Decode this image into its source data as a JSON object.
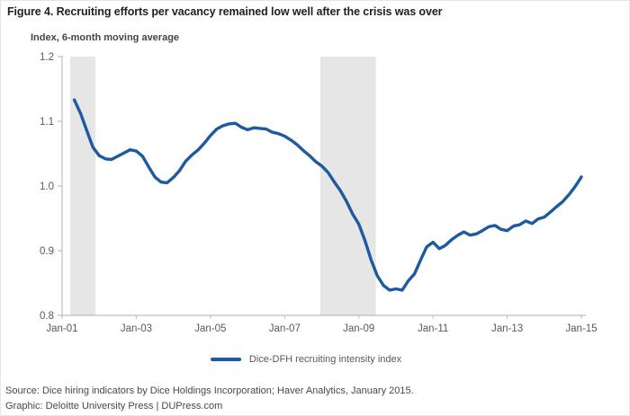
{
  "figure": {
    "title": "Figure 4. Recruiting efforts per vacancy remained low well after the crisis was over",
    "axis_note": "Index, 6-month moving average",
    "legend": {
      "label": "Dice-DFH recruiting intensity index",
      "swatch_color": "#1e5a9d"
    },
    "source_line": "Source: Dice hiring indicators by Dice Holdings Incorporation; Haver Analytics, January 2015.",
    "graphic_line": "Graphic: Deloitte University Press  |  DUPress.com"
  },
  "colors": {
    "line_blue": "#1e5a9d",
    "recession_band_gray": "#e6e6e6",
    "axis_gray": "#bdbdbd",
    "tick_label_gray": "#58595b",
    "background": "#ffffff"
  },
  "chart_data": {
    "type": "line",
    "title": "Figure 4. Recruiting efforts per vacancy remained low well after the crisis was over",
    "xlabel": "",
    "ylabel": "Index, 6-month moving average",
    "xlim": [
      2001,
      2015
    ],
    "ylim": [
      0.8,
      1.2
    ],
    "grid": false,
    "legend_position": "bottom-center",
    "y_ticks": [
      0.8,
      0.9,
      1.0,
      1.1,
      1.2
    ],
    "x_ticks": [
      {
        "label": "Jan-01",
        "year": 2001
      },
      {
        "label": "Jan-03",
        "year": 2003
      },
      {
        "label": "Jan-05",
        "year": 2005
      },
      {
        "label": "Jan-07",
        "year": 2007
      },
      {
        "label": "Jan-09",
        "year": 2009
      },
      {
        "label": "Jan-11",
        "year": 2011
      },
      {
        "label": "Jan-13",
        "year": 2013
      },
      {
        "label": "Jan-15",
        "year": 2015
      }
    ],
    "recession_bands": [
      {
        "x0": 2001.22,
        "x1": 2001.9
      },
      {
        "x0": 2007.96,
        "x1": 2009.46
      }
    ],
    "series": [
      {
        "name": "Dice-DFH recruiting intensity index",
        "color": "#1e5a9d",
        "x": [
          2001.33,
          2001.5,
          2001.67,
          2001.83,
          2002.0,
          2002.17,
          2002.33,
          2002.5,
          2002.67,
          2002.83,
          2003.0,
          2003.17,
          2003.33,
          2003.5,
          2003.67,
          2003.83,
          2004.0,
          2004.17,
          2004.33,
          2004.5,
          2004.67,
          2004.83,
          2005.0,
          2005.17,
          2005.33,
          2005.5,
          2005.67,
          2005.83,
          2006.0,
          2006.17,
          2006.33,
          2006.5,
          2006.67,
          2006.83,
          2007.0,
          2007.17,
          2007.33,
          2007.5,
          2007.67,
          2007.83,
          2008.0,
          2008.17,
          2008.33,
          2008.5,
          2008.67,
          2008.83,
          2009.0,
          2009.17,
          2009.33,
          2009.5,
          2009.67,
          2009.83,
          2010.0,
          2010.17,
          2010.33,
          2010.5,
          2010.67,
          2010.83,
          2011.0,
          2011.17,
          2011.33,
          2011.5,
          2011.67,
          2011.83,
          2012.0,
          2012.17,
          2012.33,
          2012.5,
          2012.67,
          2012.83,
          2013.0,
          2013.17,
          2013.33,
          2013.5,
          2013.67,
          2013.83,
          2014.0,
          2014.17,
          2014.33,
          2014.5,
          2014.67,
          2014.83,
          2015.0
        ],
        "y": [
          1.133,
          1.112,
          1.085,
          1.06,
          1.047,
          1.042,
          1.041,
          1.046,
          1.051,
          1.056,
          1.054,
          1.046,
          1.03,
          1.014,
          1.006,
          1.005,
          1.013,
          1.024,
          1.038,
          1.048,
          1.056,
          1.066,
          1.078,
          1.088,
          1.093,
          1.096,
          1.097,
          1.091,
          1.087,
          1.09,
          1.089,
          1.088,
          1.083,
          1.081,
          1.077,
          1.071,
          1.064,
          1.055,
          1.047,
          1.038,
          1.031,
          1.021,
          1.007,
          0.993,
          0.976,
          0.957,
          0.941,
          0.915,
          0.886,
          0.861,
          0.846,
          0.839,
          0.841,
          0.839,
          0.853,
          0.864,
          0.886,
          0.906,
          0.913,
          0.903,
          0.908,
          0.917,
          0.924,
          0.929,
          0.924,
          0.926,
          0.931,
          0.937,
          0.939,
          0.933,
          0.931,
          0.938,
          0.94,
          0.946,
          0.942,
          0.949,
          0.952,
          0.96,
          0.968,
          0.976,
          0.987,
          0.999,
          1.014
        ]
      }
    ]
  }
}
